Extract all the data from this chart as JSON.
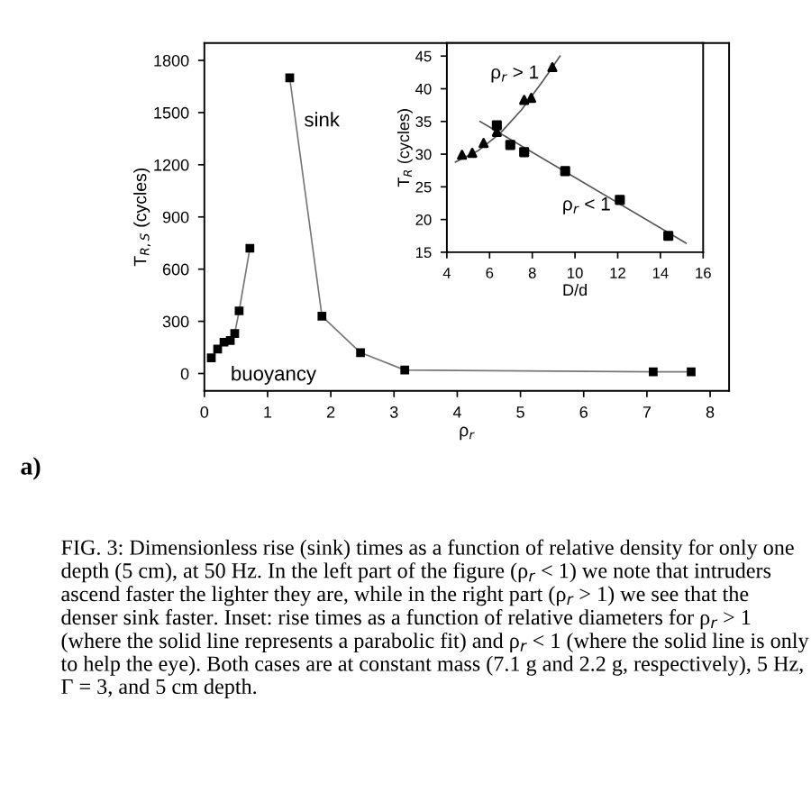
{
  "chart_data": [
    {
      "type": "line",
      "xlabel": "ρ$_{r}$",
      "ylabel": "T$_{R,S}$ (cycles)",
      "xlim": [
        0,
        8.3
      ],
      "xticks": [
        0,
        1,
        2,
        3,
        4,
        5,
        6,
        7,
        8
      ],
      "ylim": [
        -100,
        1900
      ],
      "yticks": [
        0,
        300,
        600,
        900,
        1200,
        1500,
        1800
      ],
      "marker": "square",
      "line_style": "solid",
      "grid": false,
      "legend": false,
      "series": [
        {
          "color": "#000000",
          "x": [
            0.11,
            0.21,
            0.31,
            0.41,
            0.48,
            0.55,
            0.72
          ],
          "values": [
            90,
            140,
            180,
            190,
            230,
            360,
            720
          ]
        },
        {
          "color": "#000000",
          "x": [
            1.35,
            1.86,
            2.47,
            3.17,
            7.1,
            7.7
          ],
          "values": [
            1700,
            330,
            120,
            20,
            10,
            10
          ]
        }
      ],
      "annotations": [
        "sink",
        "buoyancy",
        "a)",
        "FIG. 3: Dimensionless rise (sink) times as a function of relative density for only one depth (5 cm), at 50 Hz. In the left part of the figure (ρ$_{r}$ < 1) we note that intruders ascend faster the lighter they are, while in the right part (ρ$_{r}$ > 1) we see that the denser sink faster. Inset: rise times as a function of relative diameters for ρ$_{r}$ > 1 (where the solid line represents a parabolic fit) and ρ$_{r}$ < 1 (where the solid line is only to help the eye). Both cases are at constant mass (7.1 g and 2.2 g, respectively), 5 Hz, Γ = 3, and 5 cm depth."
      ]
    },
    {
      "type": "scatter",
      "xlabel": "D/d",
      "ylabel": "T$_{R}$ (cycles)",
      "xlim": [
        4,
        16
      ],
      "xticks": [
        4,
        6,
        8,
        10,
        12,
        14,
        16
      ],
      "ylim": [
        15,
        47
      ],
      "yticks": [
        15,
        20,
        25,
        30,
        35,
        40,
        45
      ],
      "grid": false,
      "legend": false,
      "series": [
        {
          "color": "#000000",
          "marker": "triangle",
          "x": [
            4.71,
            5.19,
            5.72,
            6.34,
            7.62,
            7.95,
            8.94
          ],
          "values": [
            29.9,
            30.2,
            31.7,
            33.4,
            38.3,
            38.6,
            43.3
          ]
        },
        {
          "color": "#000000",
          "marker": "square",
          "x": [
            6.34,
            6.97,
            7.62,
            9.54,
            12.1,
            14.37
          ],
          "values": [
            34.4,
            31.4,
            30.3,
            27.4,
            23.0,
            17.5
          ]
        },
        {
          "type": "line",
          "color": "#555555",
          "marker": "none",
          "x": [
            4.4,
            5.5,
            6.5,
            7.5,
            8.5,
            9.3
          ],
          "values": [
            28.8,
            30.6,
            33.2,
            36.8,
            41.2,
            45.0
          ]
        },
        {
          "type": "line",
          "color": "#555555",
          "marker": "none",
          "x": [
            5.55,
            15.2
          ],
          "values": [
            35.0,
            16.4
          ]
        }
      ],
      "annotations": [
        "ρ$_{r}$ > 1",
        "ρ$_{r}$ < 1"
      ]
    }
  ]
}
